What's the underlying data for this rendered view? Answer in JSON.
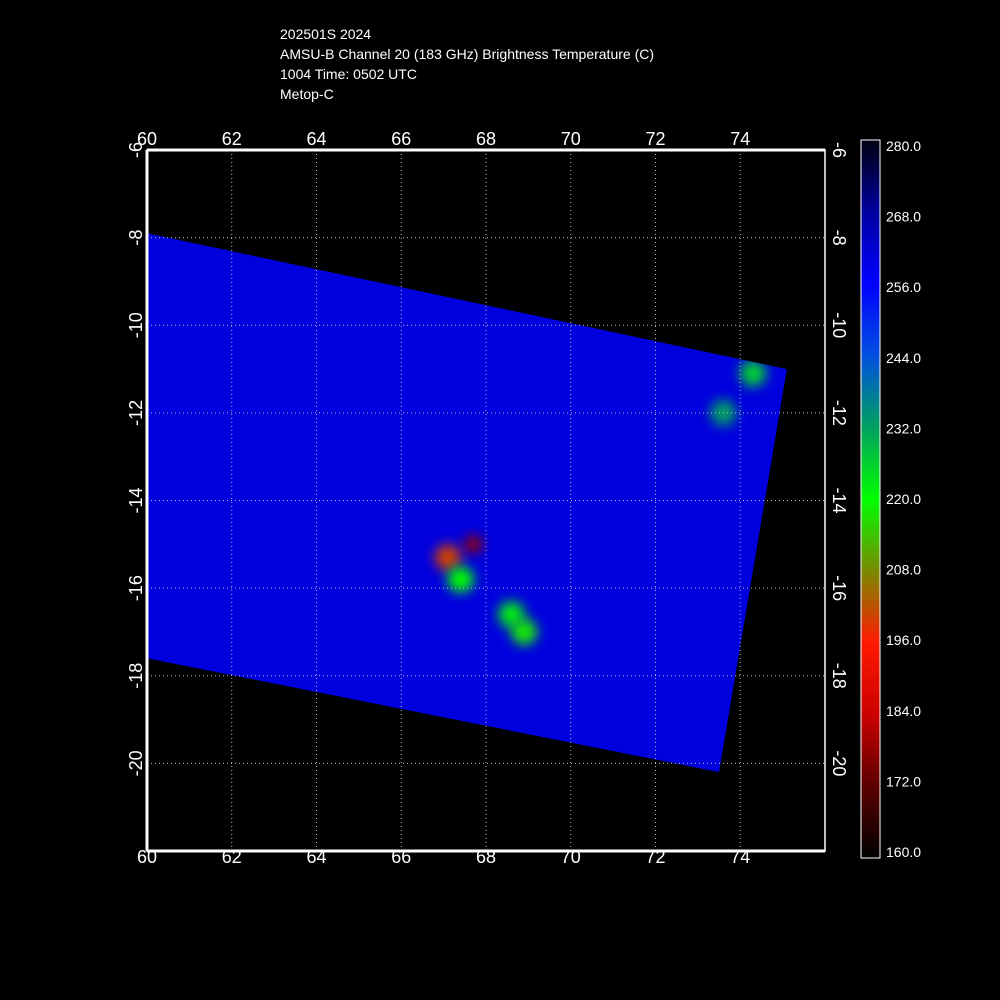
{
  "header": {
    "line1": "202501S 2024",
    "line2": "AMSU-B Channel 20 (183 GHz) Brightness Temperature (C)",
    "line3": "1004 Time: 0502 UTC",
    "line4": "Metop-C"
  },
  "chart_data": {
    "type": "heatmap",
    "title": "AMSU-B Channel 20 (183 GHz) Brightness Temperature (C)",
    "xlim": [
      60,
      76
    ],
    "ylim": [
      -22,
      -6
    ],
    "x_ticks": [
      60,
      62,
      64,
      66,
      68,
      70,
      72,
      74
    ],
    "y_ticks": [
      -6,
      -8,
      -10,
      -12,
      -14,
      -16,
      -18,
      -20
    ],
    "x_tick_labels": [
      "60",
      "62",
      "64",
      "66",
      "68",
      "70",
      "72",
      "74"
    ],
    "y_tick_labels": [
      "-6",
      "-8",
      "-10",
      "-12",
      "-14",
      "-16",
      "-18",
      "-20"
    ],
    "grid": true,
    "swath_corners": [
      [
        60,
        -7.9
      ],
      [
        75.1,
        -11.0
      ],
      [
        73.5,
        -20.2
      ],
      [
        60,
        -17.6
      ]
    ],
    "background_value": 260,
    "features": [
      {
        "lon": 67.7,
        "lat": -15.0,
        "value": 178
      },
      {
        "lon": 67.1,
        "lat": -15.3,
        "value": 200
      },
      {
        "lon": 67.4,
        "lat": -15.8,
        "value": 220
      },
      {
        "lon": 68.6,
        "lat": -16.6,
        "value": 222
      },
      {
        "lon": 68.9,
        "lat": -17.0,
        "value": 218
      },
      {
        "lon": 74.3,
        "lat": -11.1,
        "value": 226
      },
      {
        "lon": 73.6,
        "lat": -12.0,
        "value": 232
      }
    ],
    "colorbar": {
      "min": 160.0,
      "max": 280.0,
      "tick_labels": [
        "280.0",
        "268.0",
        "256.0",
        "244.0",
        "232.0",
        "220.0",
        "208.0",
        "196.0",
        "184.0",
        "172.0",
        "160.0"
      ],
      "stops": [
        {
          "value": 160,
          "color": "#000000"
        },
        {
          "value": 172,
          "color": "#5a0000"
        },
        {
          "value": 184,
          "color": "#cc0000"
        },
        {
          "value": 196,
          "color": "#ff1a00"
        },
        {
          "value": 208,
          "color": "#7a8a00"
        },
        {
          "value": 220,
          "color": "#00ff00"
        },
        {
          "value": 232,
          "color": "#00a060"
        },
        {
          "value": 244,
          "color": "#0050e0"
        },
        {
          "value": 256,
          "color": "#0000ff"
        },
        {
          "value": 268,
          "color": "#0000a0"
        },
        {
          "value": 280,
          "color": "#000010"
        }
      ]
    }
  }
}
